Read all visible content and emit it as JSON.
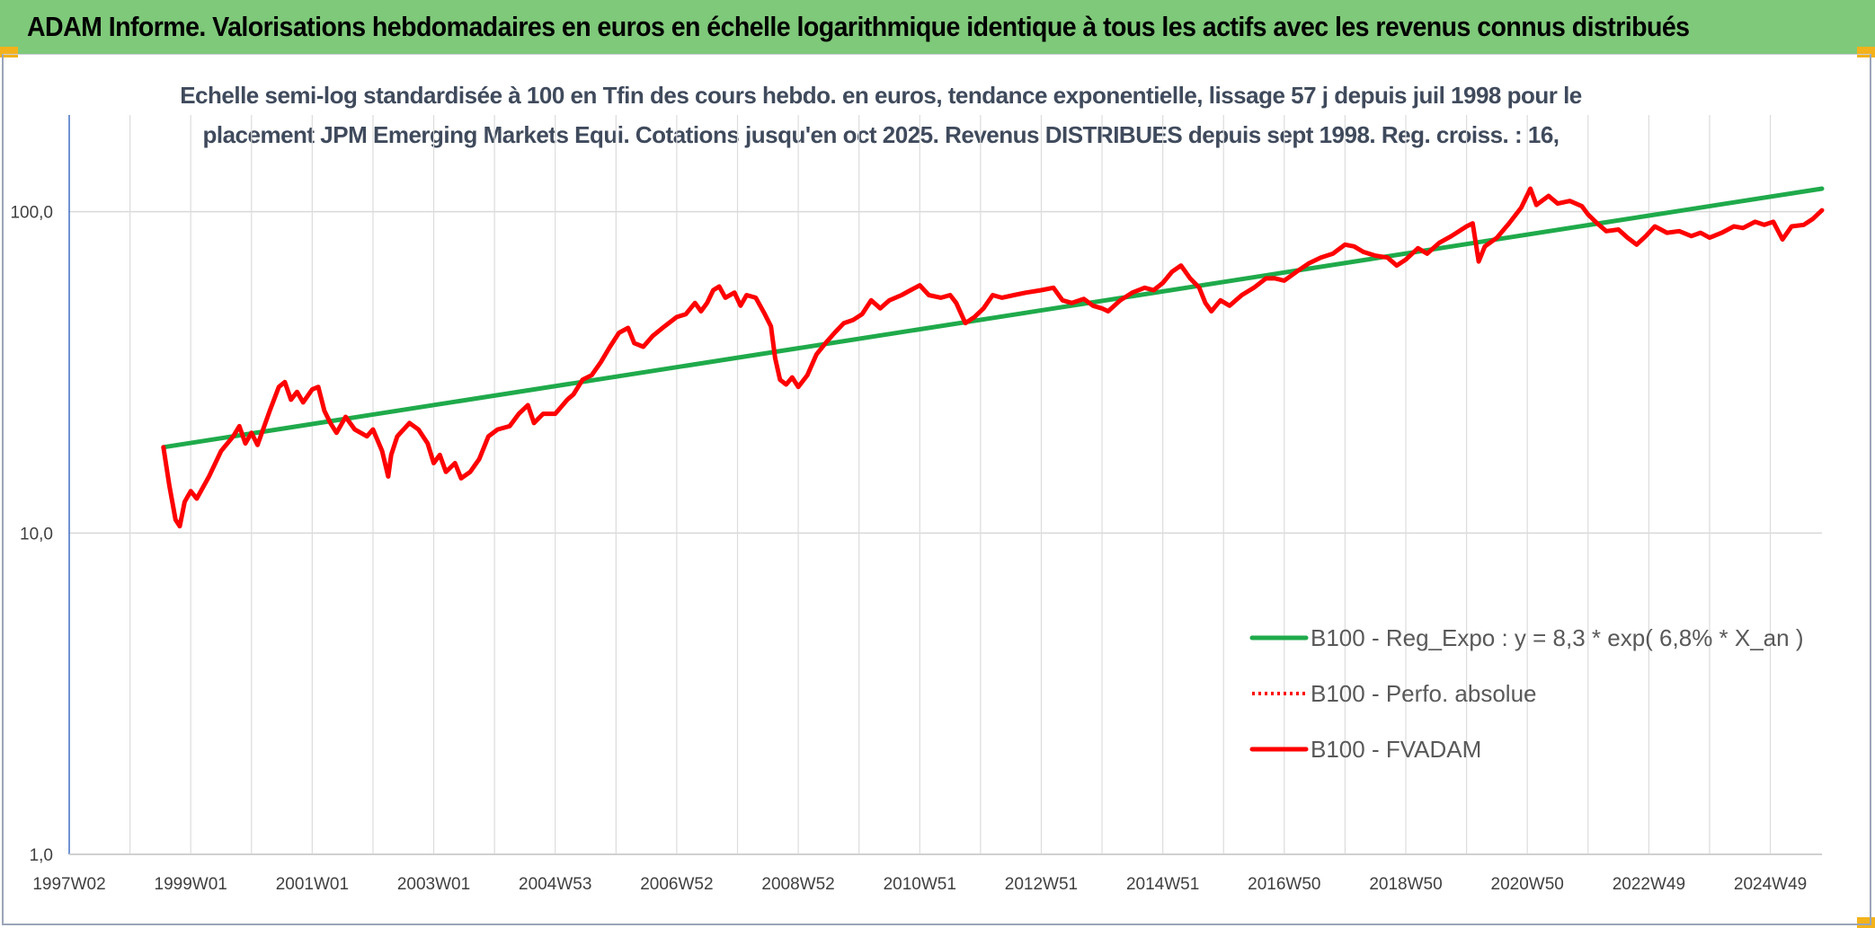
{
  "banner": {
    "title": "ADAM Informe. Valorisations hebdomadaires en euros en échelle logarithmique identique à tous les actifs avec les revenus connus distribués",
    "color": "#7fc97a"
  },
  "chart_data": {
    "type": "line",
    "title_line1": "Echelle semi-log standardisée à 100 en Tfin des cours hebdo. en euros, tendance exponentielle, lissage 57 j depuis juil 1998 pour le",
    "title_line2": "placement JPM Emerging Markets Equi. Cotations jusqu'en oct 2025. Revenus DISTRIBUES depuis sept 1998. Reg. croiss. : 16,",
    "y_scale": "log",
    "ylim": [
      1,
      200
    ],
    "y_ticks": [
      {
        "value": 1,
        "label": "1,0"
      },
      {
        "value": 10,
        "label": "10,0"
      },
      {
        "value": 100,
        "label": "100,0"
      }
    ],
    "x_range": [
      1997.0,
      2025.85
    ],
    "x_ticks": [
      {
        "value": 1997.0,
        "label": "1997W02"
      },
      {
        "value": 1999.0,
        "label": "1999W01"
      },
      {
        "value": 2001.0,
        "label": "2001W01"
      },
      {
        "value": 2003.0,
        "label": "2003W01"
      },
      {
        "value": 2005.0,
        "label": "2004W53"
      },
      {
        "value": 2007.0,
        "label": "2006W52"
      },
      {
        "value": 2009.0,
        "label": "2008W52"
      },
      {
        "value": 2011.0,
        "label": "2010W51"
      },
      {
        "value": 2013.0,
        "label": "2012W51"
      },
      {
        "value": 2015.0,
        "label": "2014W51"
      },
      {
        "value": 2017.0,
        "label": "2016W50"
      },
      {
        "value": 2019.0,
        "label": "2018W50"
      },
      {
        "value": 2021.0,
        "label": "2020W50"
      },
      {
        "value": 2023.0,
        "label": "2022W49"
      },
      {
        "value": 2025.0,
        "label": "2024W49"
      }
    ],
    "legend_position": "bottom-right",
    "grid": "vertical",
    "series": [
      {
        "name": "B100 - Reg_Expo : y = 8,3 * exp( 6,8% *  X_an )",
        "color": "#1faa4b",
        "style": "solid",
        "points": [
          [
            1998.55,
            18.5
          ],
          [
            2025.85,
            118
          ]
        ]
      },
      {
        "name": "B100 - Perfo. absolue",
        "color": "#ff0000",
        "style": "dotted",
        "points": []
      },
      {
        "name": "B100 - FVADAM",
        "color": "#ff0000",
        "style": "solid",
        "points": [
          [
            1998.55,
            18.5
          ],
          [
            1998.65,
            14.0
          ],
          [
            1998.75,
            11.0
          ],
          [
            1998.82,
            10.5
          ],
          [
            1998.9,
            12.5
          ],
          [
            1999.0,
            13.5
          ],
          [
            1999.1,
            12.8
          ],
          [
            1999.3,
            15.0
          ],
          [
            1999.5,
            18.0
          ],
          [
            1999.7,
            20.0
          ],
          [
            1999.8,
            21.5
          ],
          [
            1999.9,
            19.0
          ],
          [
            2000.0,
            20.5
          ],
          [
            2000.1,
            18.8
          ],
          [
            2000.3,
            24.0
          ],
          [
            2000.45,
            28.5
          ],
          [
            2000.55,
            29.5
          ],
          [
            2000.65,
            26.0
          ],
          [
            2000.75,
            27.5
          ],
          [
            2000.85,
            25.5
          ],
          [
            2001.0,
            28.0
          ],
          [
            2001.1,
            28.5
          ],
          [
            2001.2,
            24.0
          ],
          [
            2001.3,
            22.0
          ],
          [
            2001.4,
            20.5
          ],
          [
            2001.55,
            23.0
          ],
          [
            2001.7,
            21.0
          ],
          [
            2001.9,
            20.0
          ],
          [
            2002.0,
            21.0
          ],
          [
            2002.15,
            18.0
          ],
          [
            2002.25,
            15.0
          ],
          [
            2002.3,
            17.5
          ],
          [
            2002.4,
            20.0
          ],
          [
            2002.6,
            22.0
          ],
          [
            2002.75,
            21.0
          ],
          [
            2002.9,
            19.0
          ],
          [
            2003.0,
            16.5
          ],
          [
            2003.1,
            17.5
          ],
          [
            2003.2,
            15.5
          ],
          [
            2003.35,
            16.5
          ],
          [
            2003.45,
            14.8
          ],
          [
            2003.6,
            15.5
          ],
          [
            2003.75,
            17.0
          ],
          [
            2003.9,
            20.0
          ],
          [
            2004.05,
            21.0
          ],
          [
            2004.25,
            21.5
          ],
          [
            2004.4,
            23.5
          ],
          [
            2004.55,
            25.0
          ],
          [
            2004.65,
            22.0
          ],
          [
            2004.8,
            23.5
          ],
          [
            2005.0,
            23.5
          ],
          [
            2005.2,
            26.0
          ],
          [
            2005.3,
            27.0
          ],
          [
            2005.45,
            30.0
          ],
          [
            2005.6,
            31.0
          ],
          [
            2005.75,
            34.0
          ],
          [
            2005.9,
            38.0
          ],
          [
            2006.05,
            42.0
          ],
          [
            2006.2,
            43.5
          ],
          [
            2006.3,
            39.0
          ],
          [
            2006.45,
            38.0
          ],
          [
            2006.6,
            41.0
          ],
          [
            2006.8,
            44.0
          ],
          [
            2007.0,
            47.0
          ],
          [
            2007.15,
            48.0
          ],
          [
            2007.3,
            52.0
          ],
          [
            2007.4,
            49.0
          ],
          [
            2007.5,
            52.0
          ],
          [
            2007.6,
            57.0
          ],
          [
            2007.7,
            58.5
          ],
          [
            2007.8,
            54.0
          ],
          [
            2007.95,
            56.0
          ],
          [
            2008.05,
            51.0
          ],
          [
            2008.15,
            55.0
          ],
          [
            2008.3,
            54.0
          ],
          [
            2008.45,
            48.0
          ],
          [
            2008.55,
            44.0
          ],
          [
            2008.62,
            35.0
          ],
          [
            2008.7,
            30.0
          ],
          [
            2008.8,
            29.0
          ],
          [
            2008.9,
            30.5
          ],
          [
            2009.0,
            28.5
          ],
          [
            2009.15,
            31.0
          ],
          [
            2009.3,
            36.0
          ],
          [
            2009.45,
            39.0
          ],
          [
            2009.6,
            42.0
          ],
          [
            2009.75,
            45.0
          ],
          [
            2009.9,
            46.0
          ],
          [
            2010.05,
            48.0
          ],
          [
            2010.2,
            53.0
          ],
          [
            2010.35,
            50.0
          ],
          [
            2010.5,
            53.0
          ],
          [
            2010.7,
            55.0
          ],
          [
            2010.85,
            57.0
          ],
          [
            2011.0,
            59.0
          ],
          [
            2011.15,
            55.0
          ],
          [
            2011.35,
            54.0
          ],
          [
            2011.5,
            55.0
          ],
          [
            2011.6,
            52.0
          ],
          [
            2011.75,
            45.0
          ],
          [
            2011.9,
            47.0
          ],
          [
            2012.05,
            50.0
          ],
          [
            2012.2,
            55.0
          ],
          [
            2012.35,
            54.0
          ],
          [
            2012.55,
            55.0
          ],
          [
            2012.75,
            56.0
          ],
          [
            2013.0,
            57.0
          ],
          [
            2013.2,
            58.0
          ],
          [
            2013.35,
            53.0
          ],
          [
            2013.5,
            52.0
          ],
          [
            2013.7,
            53.5
          ],
          [
            2013.85,
            51.0
          ],
          [
            2014.0,
            50.0
          ],
          [
            2014.1,
            49.0
          ],
          [
            2014.3,
            53.0
          ],
          [
            2014.5,
            56.0
          ],
          [
            2014.7,
            58.0
          ],
          [
            2014.85,
            57.0
          ],
          [
            2015.0,
            60.0
          ],
          [
            2015.15,
            65.0
          ],
          [
            2015.3,
            68.0
          ],
          [
            2015.45,
            62.0
          ],
          [
            2015.6,
            58.0
          ],
          [
            2015.7,
            52.0
          ],
          [
            2015.8,
            49.0
          ],
          [
            2015.95,
            53.0
          ],
          [
            2016.1,
            51.0
          ],
          [
            2016.3,
            55.0
          ],
          [
            2016.5,
            58.0
          ],
          [
            2016.7,
            62.0
          ],
          [
            2016.85,
            62.0
          ],
          [
            2017.0,
            61.0
          ],
          [
            2017.2,
            65.0
          ],
          [
            2017.4,
            69.0
          ],
          [
            2017.6,
            72.0
          ],
          [
            2017.8,
            74.0
          ],
          [
            2018.0,
            79.0
          ],
          [
            2018.15,
            78.0
          ],
          [
            2018.3,
            75.0
          ],
          [
            2018.5,
            73.0
          ],
          [
            2018.7,
            72.0
          ],
          [
            2018.85,
            68.0
          ],
          [
            2019.0,
            71.0
          ],
          [
            2019.2,
            77.0
          ],
          [
            2019.35,
            74.0
          ],
          [
            2019.55,
            80.0
          ],
          [
            2019.75,
            84.0
          ],
          [
            2020.0,
            90.0
          ],
          [
            2020.1,
            92.0
          ],
          [
            2020.2,
            70.0
          ],
          [
            2020.3,
            78.0
          ],
          [
            2020.5,
            83.0
          ],
          [
            2020.7,
            92.0
          ],
          [
            2020.9,
            103.0
          ],
          [
            2021.05,
            118.0
          ],
          [
            2021.15,
            105.0
          ],
          [
            2021.35,
            112.0
          ],
          [
            2021.5,
            106.0
          ],
          [
            2021.7,
            108.0
          ],
          [
            2021.9,
            104.0
          ],
          [
            2022.0,
            98.0
          ],
          [
            2022.15,
            92.0
          ],
          [
            2022.3,
            87.0
          ],
          [
            2022.5,
            88.0
          ],
          [
            2022.65,
            83.0
          ],
          [
            2022.8,
            79.0
          ],
          [
            2022.95,
            84.0
          ],
          [
            2023.1,
            90.0
          ],
          [
            2023.3,
            86.0
          ],
          [
            2023.5,
            87.0
          ],
          [
            2023.7,
            84.0
          ],
          [
            2023.85,
            86.0
          ],
          [
            2024.0,
            83.0
          ],
          [
            2024.2,
            86.0
          ],
          [
            2024.4,
            90.0
          ],
          [
            2024.55,
            89.0
          ],
          [
            2024.75,
            93.0
          ],
          [
            2024.9,
            91.0
          ],
          [
            2025.05,
            93.0
          ],
          [
            2025.2,
            82.0
          ],
          [
            2025.35,
            90.0
          ],
          [
            2025.55,
            91.0
          ],
          [
            2025.7,
            95.0
          ],
          [
            2025.85,
            101.0
          ]
        ]
      }
    ]
  }
}
